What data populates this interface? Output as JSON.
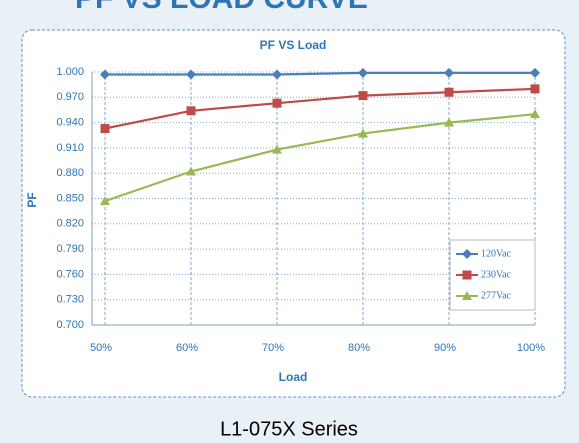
{
  "header": {
    "title": "PF VS LOAD CURVE"
  },
  "chart_data": {
    "type": "line",
    "title": "PF  VS  Load",
    "x_label": "Load",
    "y_label": "PF",
    "categories": [
      "50%",
      "60%",
      "70%",
      "80%",
      "90%",
      "100%"
    ],
    "series": [
      {
        "name": "120Vac",
        "color": "#4a7ebb",
        "marker": "diamond",
        "values": [
          0.997,
          0.997,
          0.997,
          0.999,
          0.999,
          0.999
        ]
      },
      {
        "name": "230Vac",
        "color": "#be4b48",
        "marker": "square",
        "values": [
          0.933,
          0.954,
          0.963,
          0.972,
          0.976,
          0.98
        ]
      },
      {
        "name": "277Vac",
        "color": "#98b954",
        "marker": "triangle",
        "values": [
          0.847,
          0.882,
          0.908,
          0.927,
          0.94,
          0.95
        ]
      }
    ],
    "ylim": [
      0.7,
      1.0
    ],
    "yticks": [
      {
        "value": 0.7,
        "label": "0.700"
      },
      {
        "value": 0.73,
        "label": "0.730"
      },
      {
        "value": 0.76,
        "label": "0.760"
      },
      {
        "value": 0.79,
        "label": "0.790"
      },
      {
        "value": 0.82,
        "label": "0.820"
      },
      {
        "value": 0.85,
        "label": "0.850"
      },
      {
        "value": 0.88,
        "label": "0.880"
      },
      {
        "value": 0.91,
        "label": "0.910"
      },
      {
        "value": 0.94,
        "label": "0.940"
      },
      {
        "value": 0.97,
        "label": "0.970"
      },
      {
        "value": 1.0,
        "label": "1.000"
      }
    ],
    "grid": true,
    "legend": "lower right"
  },
  "footer": {
    "caption": "L1-075X Series"
  }
}
